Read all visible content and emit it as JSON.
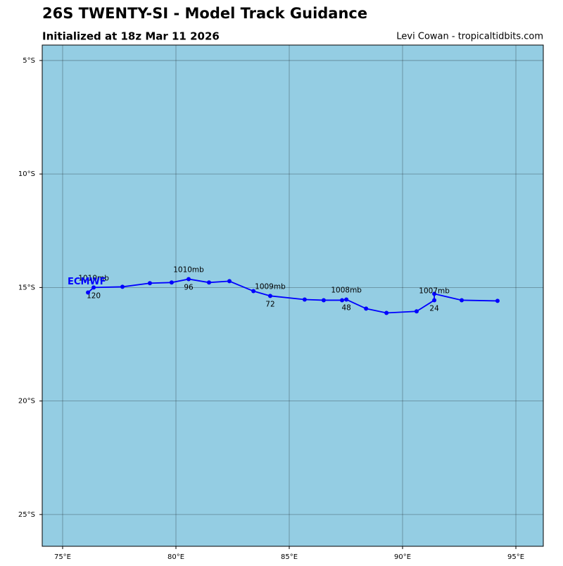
{
  "chart_data": {
    "type": "track",
    "title": "26S TWENTY-SI - Model Track Guidance",
    "subtitle": "Initialized at 18z Mar 11 2026",
    "credit": "Levi Cowan - tropicaltidbits.com",
    "background": "#94cde3",
    "grid": true,
    "xlim": [
      74.1,
      96.21
    ],
    "ylim": [
      -26.4,
      -4.32
    ],
    "xticks": [
      {
        "value": 75,
        "label": "75°E"
      },
      {
        "value": 80,
        "label": "80°E"
      },
      {
        "value": 85,
        "label": "85°E"
      },
      {
        "value": 90,
        "label": "90°E"
      },
      {
        "value": 95,
        "label": "95°E"
      }
    ],
    "yticks": [
      {
        "value": -5,
        "label": "5°S"
      },
      {
        "value": -10,
        "label": "10°S"
      },
      {
        "value": -15,
        "label": "15°S"
      },
      {
        "value": -20,
        "label": "20°S"
      },
      {
        "value": -25,
        "label": "25°S"
      }
    ],
    "series": [
      {
        "name": "ECMWF",
        "color": "#0000ff",
        "x": [
          94.19,
          92.61,
          91.4,
          91.4,
          90.62,
          89.29,
          88.39,
          87.52,
          87.33,
          86.52,
          85.68,
          84.16,
          83.42,
          82.36,
          81.46,
          80.56,
          79.81,
          78.85,
          77.64,
          76.37,
          76.12
        ],
        "y": [
          -15.59,
          -15.56,
          -15.28,
          -15.56,
          -16.05,
          -16.12,
          -15.93,
          -15.53,
          -15.56,
          -15.56,
          -15.53,
          -15.37,
          -15.16,
          -14.72,
          -14.78,
          -14.63,
          -14.78,
          -14.81,
          -14.97,
          -15.0,
          -15.22
        ],
        "pressure_labels": [
          null,
          null,
          null,
          "1007mb",
          null,
          null,
          null,
          "1008mb",
          null,
          null,
          null,
          "1009mb",
          null,
          null,
          null,
          "1010mb",
          null,
          null,
          null,
          "1010mb",
          null
        ],
        "hour_labels": [
          null,
          null,
          null,
          "24",
          null,
          null,
          null,
          "48",
          null,
          null,
          null,
          "72",
          null,
          null,
          null,
          "96",
          null,
          null,
          null,
          "120",
          null
        ]
      }
    ]
  }
}
